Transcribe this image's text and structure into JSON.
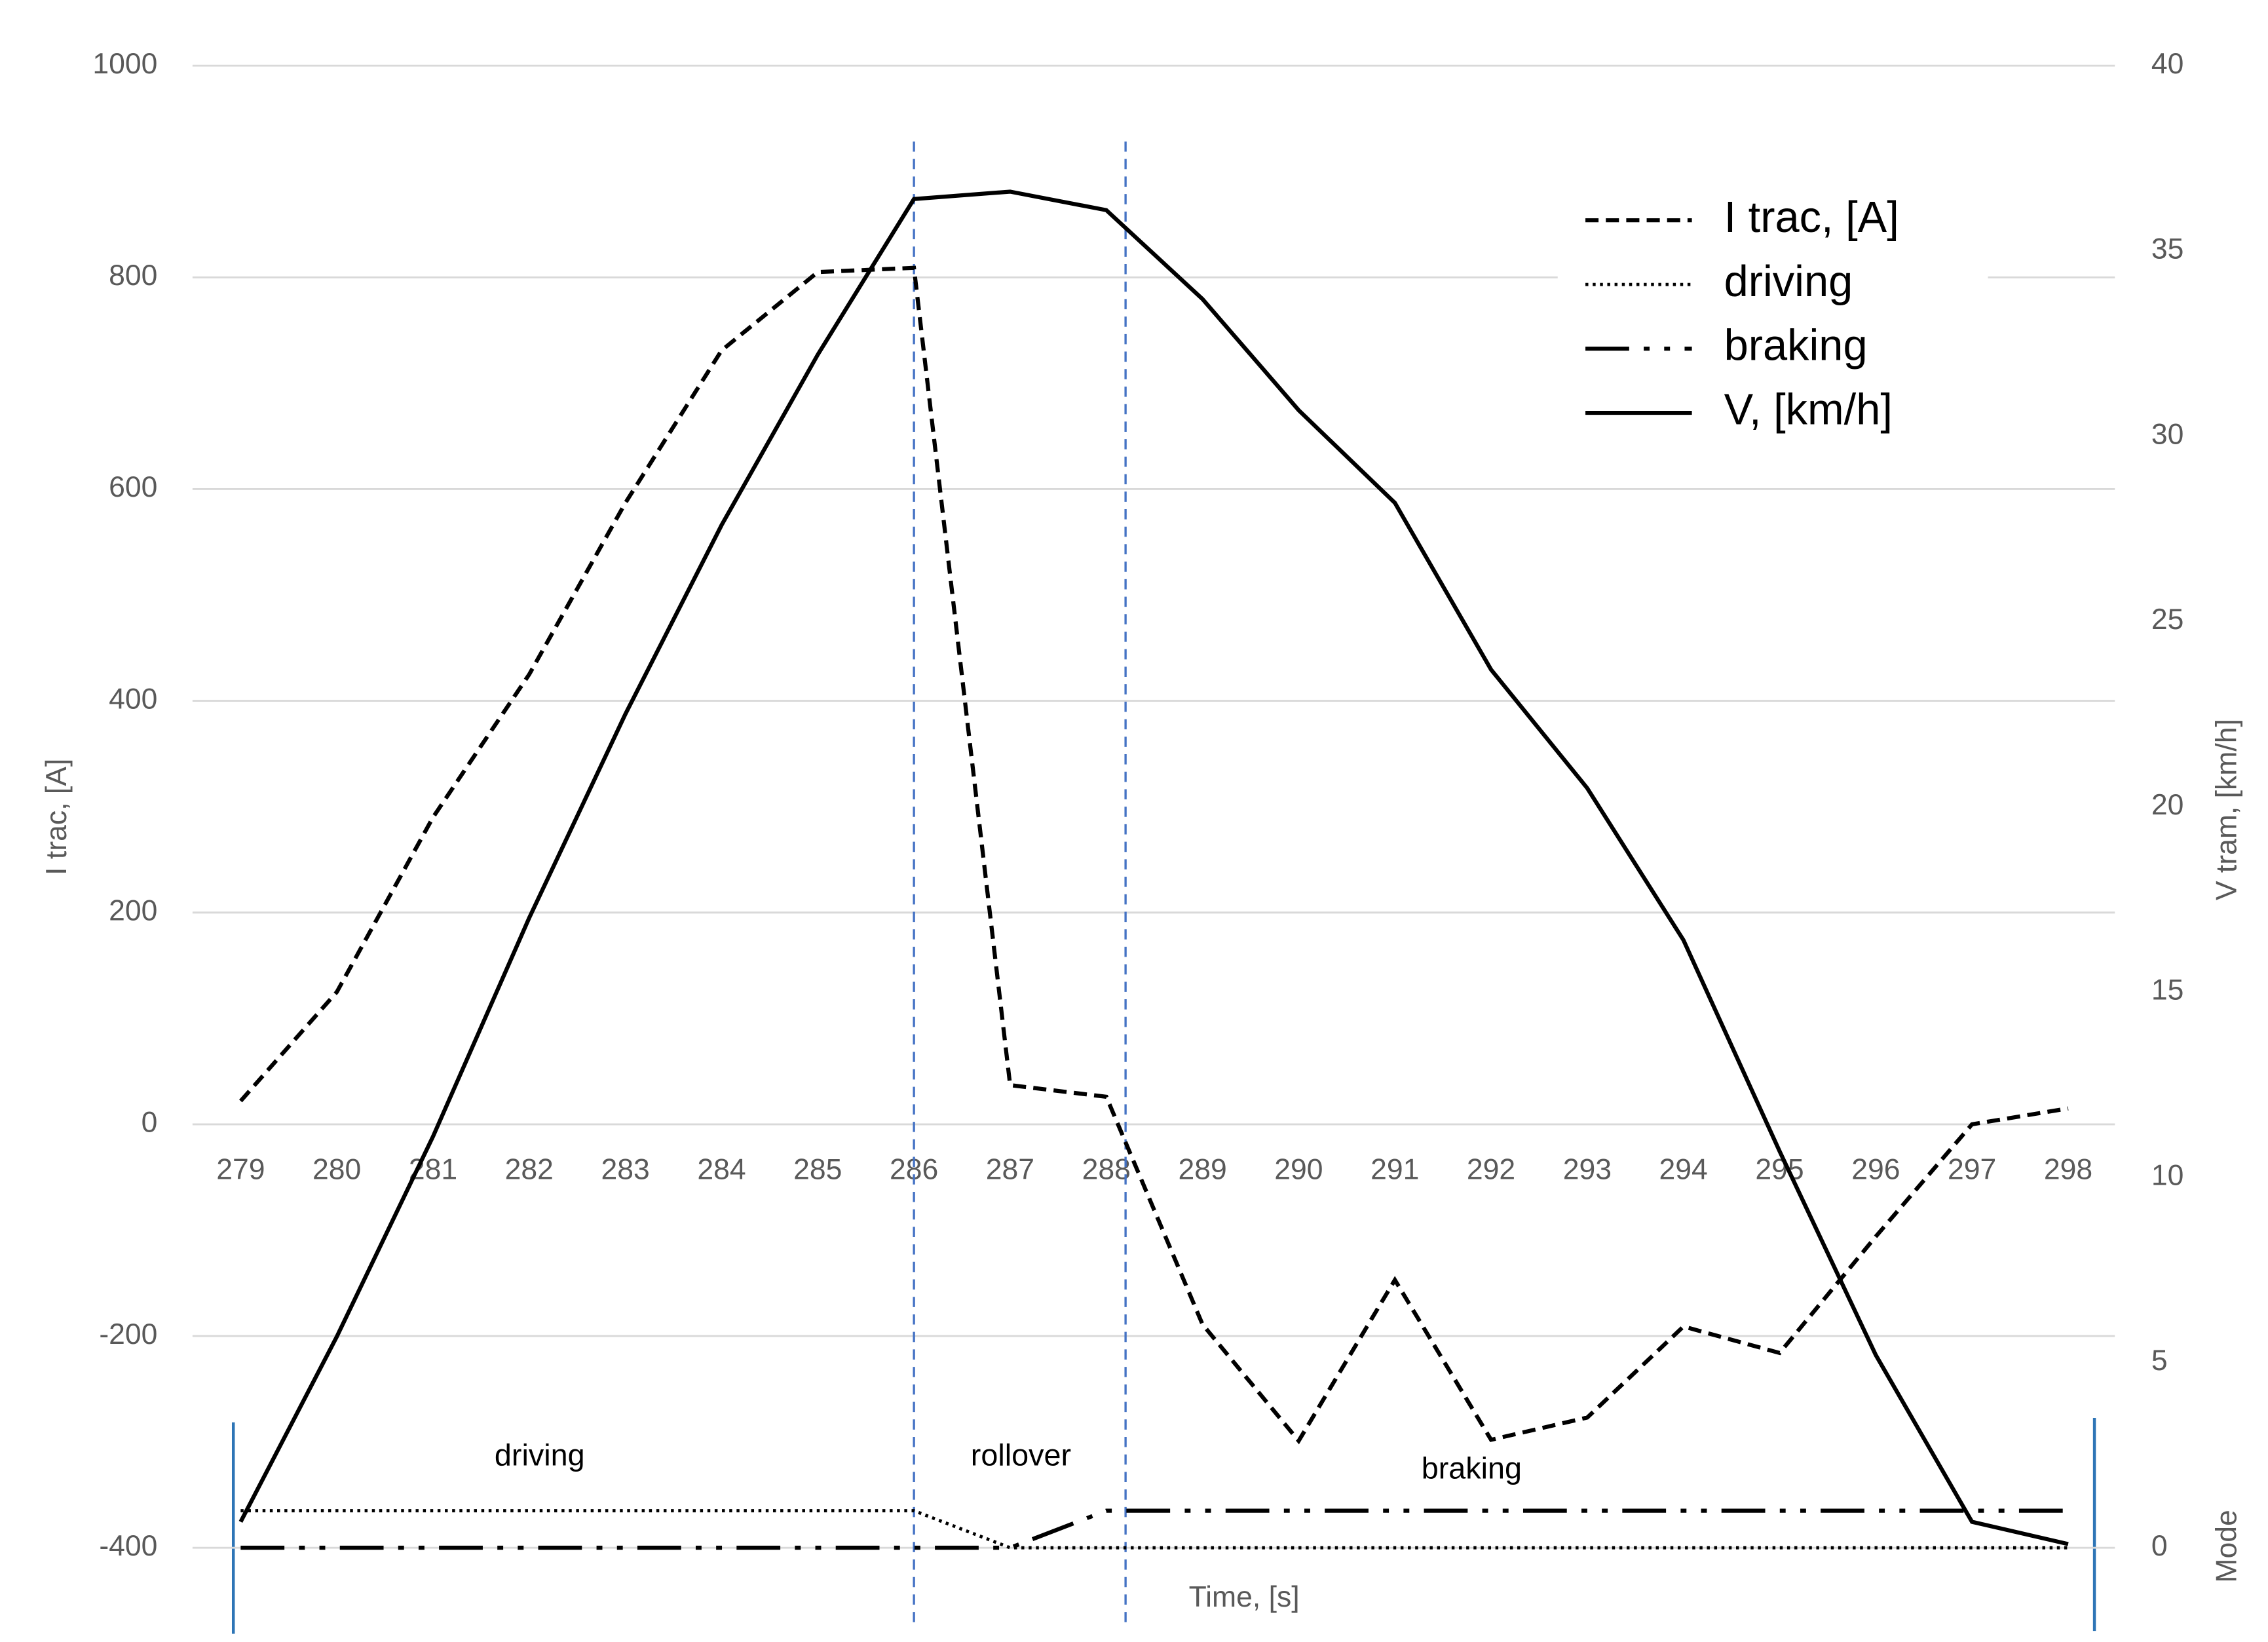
{
  "chart_data": {
    "type": "line",
    "x": [
      279,
      280,
      281,
      282,
      283,
      284,
      285,
      286,
      287,
      288,
      289,
      290,
      291,
      292,
      293,
      294,
      295,
      296,
      297,
      298
    ],
    "xlim": [
      279,
      298
    ],
    "xlabel": "Time, [s]",
    "ylabel": "I trac, [A]",
    "y2label": "V tram, [km/h]",
    "y3label": "Mode",
    "ylim": [
      -400,
      1000
    ],
    "yticks": [
      -400,
      -200,
      0,
      200,
      400,
      600,
      800,
      1000
    ],
    "y2lim": [
      0,
      40
    ],
    "y2ticks": [
      0,
      5,
      10,
      15,
      20,
      25,
      30,
      35,
      40
    ],
    "grid": true,
    "legend": "upper right",
    "series": [
      {
        "name": "I trac, [A]",
        "color": "#000000",
        "style": "dashed",
        "values": [
          22,
          125,
          290,
          425,
          587,
          731,
          805,
          809,
          37,
          26,
          -189,
          -299,
          -147,
          -298,
          -277,
          -191,
          -216,
          -106,
          0,
          15
        ]
      },
      {
        "name": "driving",
        "color": "#000000",
        "style": "dotted",
        "axis": "y2",
        "values": [
          1,
          1,
          1,
          1,
          1,
          1,
          1,
          1,
          0,
          0,
          0,
          0,
          0,
          0,
          0,
          0,
          0,
          0,
          0,
          0
        ]
      },
      {
        "name": "braking",
        "color": "#000000",
        "style": "dashdotdot",
        "axis": "y2",
        "values": [
          0,
          0,
          0,
          0,
          0,
          0,
          0,
          0,
          0,
          1,
          1,
          1,
          1,
          1,
          1,
          1,
          1,
          1,
          1,
          1
        ]
      },
      {
        "name": "V, [km/h]",
        "color": "#000000",
        "style": "solid",
        "axis": "y2",
        "values": [
          0.7,
          5.7,
          11.1,
          17.0,
          22.5,
          27.6,
          32.2,
          36.4,
          36.6,
          36.1,
          33.7,
          30.7,
          28.2,
          23.7,
          20.5,
          16.4,
          10.7,
          5.2,
          0.7,
          0.1
        ]
      }
    ],
    "phase_lines": [
      286,
      288.2
    ],
    "phase_line_color": "#4472c4",
    "annotations": [
      "driving",
      "rollover",
      "braking"
    ]
  }
}
